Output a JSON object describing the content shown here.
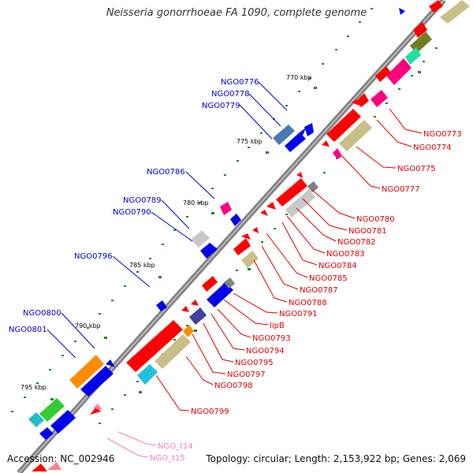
{
  "title": "Neisseria gonorrhoeae FA 1090, complete genome",
  "accession": "Accession: NC_002946",
  "topology": "Topology: circular; Length: 2,153,922 bp; Genes: 2,069",
  "colors": {
    "backbone": "#808080",
    "forward_label": "#0000cc",
    "reverse_label": "#dd0000",
    "rna_label": "#f080c0",
    "tick": "#1a8a1a"
  },
  "kbp_ticks": [
    {
      "label": "770 kbp"
    },
    {
      "label": "775 kbp"
    },
    {
      "label": "780 kbp"
    },
    {
      "label": "785 kbp"
    },
    {
      "label": "790 kbp"
    },
    {
      "label": "795 kbp"
    }
  ],
  "forward_labels": [
    "NGO0776",
    "NGO0778",
    "NGO0779",
    "NGO0786",
    "NGO0789",
    "NGO0790",
    "NGO0796",
    "NGO0800",
    "NGO0801"
  ],
  "reverse_labels": [
    "NGO0773",
    "NGO0774",
    "NGO0775",
    "NGO0777",
    "NGO0780",
    "NGO0781",
    "NGO0782",
    "NGO0783",
    "NGO0784",
    "NGO0785",
    "NGO0787",
    "NGO0788",
    "NGO0791",
    "lipB",
    "NGO0793",
    "NGO0794",
    "NGO0795",
    "NGO0797",
    "NGO0798",
    "NGO0799"
  ],
  "rna_labels": [
    "NGO_t14",
    "NGO_t15"
  ]
}
